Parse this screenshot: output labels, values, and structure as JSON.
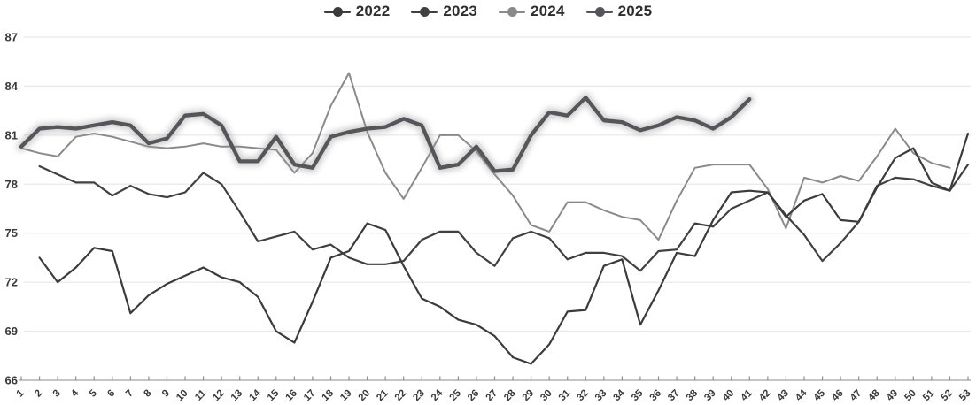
{
  "chart_data": {
    "type": "line",
    "title": "",
    "xlabel": "",
    "ylabel": "",
    "grid": true,
    "legend_position": "top-center",
    "background": "#ffffff",
    "gridline_color": "#e8e8e8",
    "axis_line_color": "#b3b3b3",
    "tick_color": "#8a8a8a",
    "axis_text_color": "#3a3a3a",
    "y_axis": {
      "min": 66,
      "max": 87,
      "step": 3,
      "tick_labels": [
        "66",
        "69",
        "72",
        "75",
        "78",
        "81",
        "84",
        "87"
      ]
    },
    "x_axis": {
      "min": 1,
      "max": 53,
      "tick_labels": [
        "1",
        "2",
        "3",
        "4",
        "5",
        "6",
        "7",
        "8",
        "9",
        "10",
        "11",
        "12",
        "13",
        "14",
        "15",
        "16",
        "17",
        "18",
        "19",
        "20",
        "21",
        "22",
        "23",
        "24",
        "25",
        "26",
        "27",
        "28",
        "29",
        "30",
        "31",
        "32",
        "33",
        "34",
        "35",
        "36",
        "37",
        "38",
        "39",
        "40",
        "41",
        "42",
        "43",
        "44",
        "45",
        "46",
        "47",
        "48",
        "49",
        "50",
        "51",
        "52",
        "53"
      ]
    },
    "series": [
      {
        "name": "2022",
        "color": "#3b3b3b",
        "line_width": 2.2,
        "glow": false,
        "start_week": 2,
        "values": [
          73.5,
          72.0,
          72.9,
          74.1,
          73.9,
          70.1,
          71.2,
          71.9,
          72.4,
          72.9,
          72.3,
          72.0,
          71.1,
          69.0,
          68.3,
          70.8,
          73.5,
          73.9,
          75.6,
          75.2,
          73.0,
          71.0,
          70.5,
          69.7,
          69.4,
          68.7,
          67.4,
          67.0,
          68.2,
          70.2,
          70.3,
          73.0,
          73.4,
          69.4,
          71.5,
          73.8,
          73.6,
          75.8,
          77.5,
          77.6,
          77.5,
          76.0,
          77.0,
          77.4,
          75.8,
          75.7,
          77.8,
          79.6,
          80.2,
          78.1,
          77.6,
          81.1
        ]
      },
      {
        "name": "2023",
        "color": "#404040",
        "line_width": 2.2,
        "glow": false,
        "start_week": 2,
        "values": [
          79.1,
          78.6,
          78.1,
          78.1,
          77.3,
          77.9,
          77.4,
          77.2,
          77.5,
          78.7,
          78.0,
          76.3,
          74.5,
          74.8,
          75.1,
          74.0,
          74.3,
          73.5,
          73.1,
          73.1,
          73.3,
          74.6,
          75.1,
          75.1,
          73.8,
          73.0,
          74.7,
          75.1,
          74.7,
          73.4,
          73.8,
          73.8,
          73.6,
          72.7,
          73.9,
          74.0,
          75.6,
          75.4,
          76.5,
          77.0,
          77.5,
          76.1,
          74.9,
          73.3,
          74.4,
          75.7,
          77.9,
          78.4,
          78.3,
          77.9,
          77.6,
          79.2
        ]
      },
      {
        "name": "2024",
        "color": "#8a8a8a",
        "line_width": 2.0,
        "glow": false,
        "start_week": 1,
        "values": [
          80.2,
          79.9,
          79.7,
          80.9,
          81.1,
          80.9,
          80.6,
          80.3,
          80.2,
          80.3,
          80.5,
          80.3,
          80.3,
          80.2,
          80.1,
          78.7,
          79.9,
          82.8,
          84.8,
          81.2,
          78.7,
          77.1,
          79.0,
          81.0,
          81.0,
          80.0,
          78.6,
          77.3,
          75.5,
          75.1,
          76.9,
          76.9,
          76.4,
          76.0,
          75.8,
          74.6,
          77.0,
          79.0,
          79.2,
          79.2,
          79.2,
          77.7,
          75.3,
          78.4,
          78.1,
          78.5,
          78.2,
          79.7,
          81.4,
          79.9,
          79.3,
          79.0
        ]
      },
      {
        "name": "2025",
        "color": "#55555a",
        "line_width": 4.3,
        "glow": true,
        "start_week": 1,
        "values": [
          80.3,
          81.4,
          81.5,
          81.4,
          81.6,
          81.8,
          81.6,
          80.5,
          80.8,
          82.2,
          82.3,
          81.6,
          79.4,
          79.4,
          80.9,
          79.2,
          79.0,
          80.9,
          81.2,
          81.4,
          81.5,
          82.0,
          81.6,
          79.0,
          79.2,
          80.3,
          78.8,
          78.9,
          81.0,
          82.4,
          82.2,
          83.3,
          81.9,
          81.8,
          81.3,
          81.6,
          82.1,
          81.9,
          81.4,
          82.1,
          83.2
        ]
      }
    ]
  }
}
